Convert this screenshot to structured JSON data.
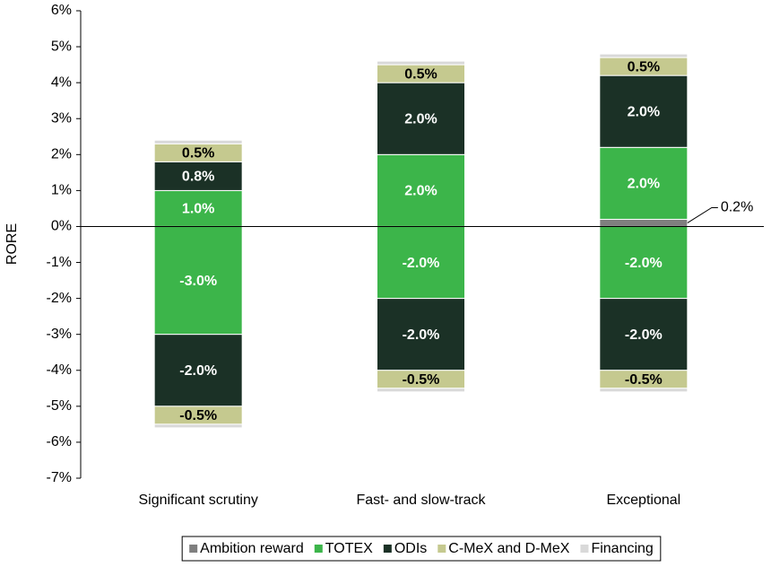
{
  "chart_data": {
    "type": "bar",
    "stacked": true,
    "y_label": "RORE",
    "categories": [
      "Significant scrutiny",
      "Fast- and slow-track",
      "Exceptional"
    ],
    "ylim": [
      -7,
      6
    ],
    "yticks": [
      {
        "value": -7,
        "label": "-7%"
      },
      {
        "value": -6,
        "label": "-6%"
      },
      {
        "value": -5,
        "label": "-5%"
      },
      {
        "value": -4,
        "label": "-4%"
      },
      {
        "value": -3,
        "label": "-3%"
      },
      {
        "value": -2,
        "label": "-2%"
      },
      {
        "value": -1,
        "label": "-1%"
      },
      {
        "value": 0,
        "label": "0%"
      },
      {
        "value": 1,
        "label": "1%"
      },
      {
        "value": 2,
        "label": "2%"
      },
      {
        "value": 3,
        "label": "3%"
      },
      {
        "value": 4,
        "label": "4%"
      },
      {
        "value": 5,
        "label": "5%"
      },
      {
        "value": 6,
        "label": "6%"
      }
    ],
    "legend": "bottom",
    "series": [
      {
        "name": "Ambition reward",
        "color": "#7f7f7f",
        "values": [
          null,
          null,
          0.2
        ],
        "value_labels": [
          null,
          null,
          "0.2%"
        ]
      },
      {
        "name": "TOTEX",
        "color": "#3cb54a",
        "values": [
          1.0,
          2.0,
          2.0
        ],
        "value_labels": [
          "1.0%",
          "2.0%",
          "2.0%"
        ],
        "negative_values": [
          -3.0,
          -2.0,
          -2.0
        ],
        "negative_value_labels": [
          "-3.0%",
          "-2.0%",
          "-2.0%"
        ]
      },
      {
        "name": "ODIs",
        "color": "#1b3126",
        "values": [
          0.8,
          2.0,
          2.0
        ],
        "value_labels": [
          "0.8%",
          "2.0%",
          "2.0%"
        ],
        "negative_values": [
          -2.0,
          -2.0,
          -2.0
        ],
        "negative_value_labels": [
          "-2.0%",
          "-2.0%",
          "-2.0%"
        ]
      },
      {
        "name": "C-MeX and D-MeX",
        "color": "#c5c98f",
        "values": [
          0.5,
          0.5,
          0.5
        ],
        "value_labels": [
          "0.5%",
          "0.5%",
          "0.5%"
        ],
        "negative_values": [
          -0.5,
          -0.5,
          -0.5
        ],
        "negative_value_labels": [
          "-0.5%",
          "-0.5%",
          "-0.5%"
        ]
      },
      {
        "name": "Financing",
        "color": "#d9d9d9",
        "values": [
          0.1,
          0.1,
          0.1
        ],
        "negative_values": [
          -0.1,
          -0.1,
          -0.1
        ]
      }
    ]
  }
}
